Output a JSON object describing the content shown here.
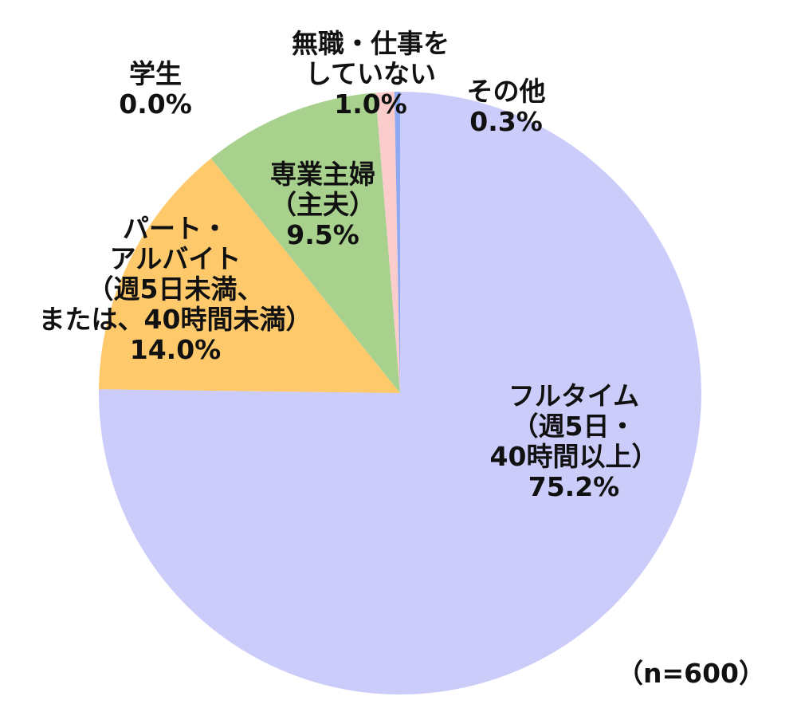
{
  "chart_data": {
    "type": "pie",
    "start": "top",
    "direction": "clockwise",
    "slices": [
      {
        "label": [
          "フルタイム",
          "（週5日・",
          "40時間以上）"
        ],
        "value": 75.2,
        "value_label": "75.2%",
        "color": "#ccccfb"
      },
      {
        "label": [
          "パート・",
          "アルバイト",
          "（週5日未満、",
          "または、40時間未満）"
        ],
        "value": 14.0,
        "value_label": "14.0%",
        "color": "#fdc96a"
      },
      {
        "label": [
          "専業主婦",
          "（主夫）"
        ],
        "value": 9.5,
        "value_label": "9.5%",
        "color": "#a9d18e"
      },
      {
        "label": [
          "学生"
        ],
        "value": 0.0,
        "value_label": "0.0%",
        "color": "#f4b183"
      },
      {
        "label": [
          "無職・仕事を",
          "していない"
        ],
        "value": 1.0,
        "value_label": "1.0%",
        "color": "#fbcccc"
      },
      {
        "label": [
          "その他"
        ],
        "value": 0.3,
        "value_label": "0.3%",
        "color": "#8fa8f2"
      }
    ],
    "note": "（n=600）"
  }
}
